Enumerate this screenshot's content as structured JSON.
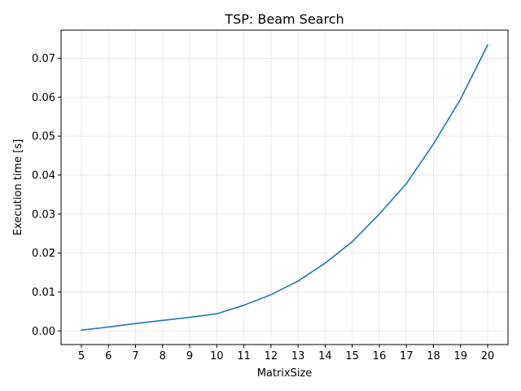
{
  "chart_data": {
    "type": "line",
    "title": "TSP: Beam Search",
    "xlabel": "MatrixSize",
    "ylabel": "Execution time [s]",
    "x": [
      5,
      6,
      7,
      8,
      9,
      10,
      11,
      12,
      13,
      14,
      15,
      16,
      17,
      18,
      19,
      20
    ],
    "series": [
      {
        "values": [
          0.0002,
          0.001,
          0.0019,
          0.0027,
          0.0035,
          0.0044,
          0.0066,
          0.0093,
          0.0128,
          0.0174,
          0.0229,
          0.03,
          0.0378,
          0.048,
          0.0595,
          0.0734
        ],
        "color": "#1f77b4"
      }
    ],
    "x_ticks": [
      "5",
      "6",
      "7",
      "8",
      "9",
      "10",
      "11",
      "12",
      "13",
      "14",
      "15",
      "16",
      "17",
      "18",
      "19",
      "20"
    ],
    "y_ticks": [
      "0.00",
      "0.01",
      "0.02",
      "0.03",
      "0.04",
      "0.05",
      "0.06",
      "0.07"
    ],
    "xlim": [
      4.25,
      20.75
    ],
    "ylim": [
      -0.0035,
      0.0772
    ],
    "grid": true
  }
}
